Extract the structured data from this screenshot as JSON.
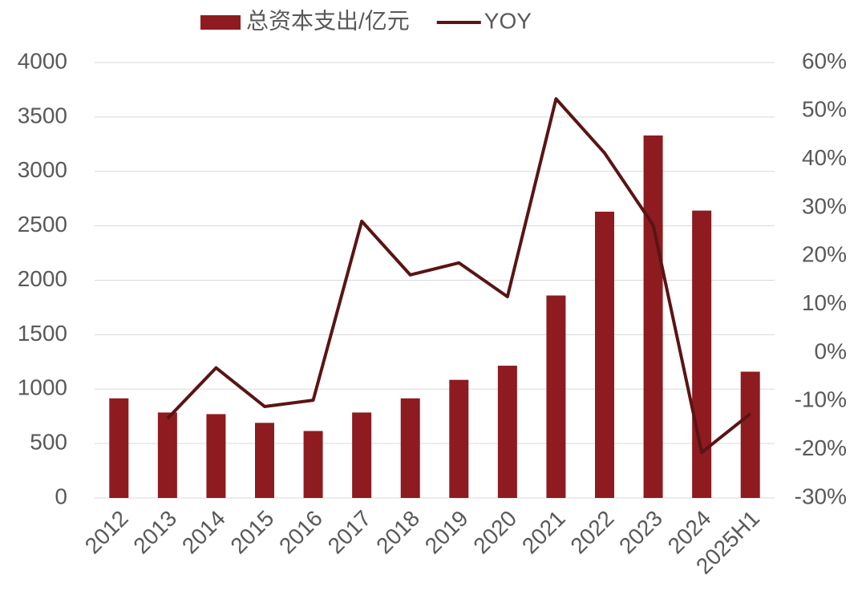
{
  "chart_data": {
    "type": "bar-line",
    "categories": [
      "2012",
      "2013",
      "2014",
      "2015",
      "2016",
      "2017",
      "2018",
      "2019",
      "2020",
      "2021",
      "2022",
      "2023",
      "2024",
      "2025H1"
    ],
    "series": [
      {
        "name": "总资本支出/亿元",
        "type": "bar",
        "color": "#8e1b20",
        "values": [
          915,
          785,
          770,
          690,
          615,
          785,
          915,
          1085,
          1215,
          1860,
          2630,
          3330,
          2640,
          1160
        ]
      },
      {
        "name": "YOY",
        "type": "line",
        "axis": "y2",
        "color": "#5a1414",
        "values": [
          null,
          -13.6,
          -3.1,
          -11.1,
          -9.8,
          27.2,
          16.1,
          18.6,
          11.6,
          52.5,
          41.3,
          26.4,
          -20.6,
          -12.6
        ]
      }
    ],
    "ylim": [
      0,
      4000
    ],
    "yticks": [
      0,
      500,
      1000,
      1500,
      2000,
      2500,
      3000,
      3500,
      4000
    ],
    "y2lim": [
      -30,
      60
    ],
    "y2ticks": [
      {
        "value": -30,
        "label": "-30%"
      },
      {
        "value": -20,
        "label": "-20%"
      },
      {
        "value": -10,
        "label": "-10%"
      },
      {
        "value": 0,
        "label": "0%"
      },
      {
        "value": 10,
        "label": "10%"
      },
      {
        "value": 20,
        "label": "20%"
      },
      {
        "value": 30,
        "label": "30%"
      },
      {
        "value": 40,
        "label": "40%"
      },
      {
        "value": 50,
        "label": "50%"
      },
      {
        "value": 60,
        "label": "60%"
      }
    ],
    "grid": true,
    "legend": "top"
  }
}
